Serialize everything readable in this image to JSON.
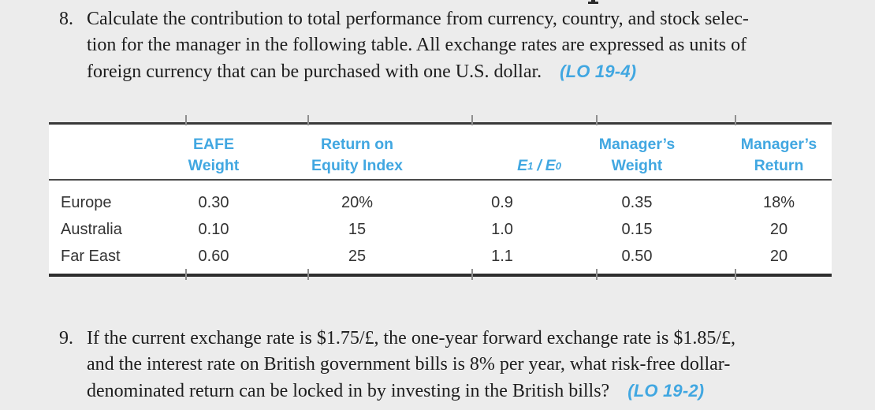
{
  "colors": {
    "accent_blue": "#41a7e1",
    "page_background": "#ececec",
    "table_background": "#ffffff"
  },
  "problem_8": {
    "number": "8.",
    "line1": "Calculate the contribution to total performance from currency, country, and stock selec-",
    "line2": "tion for the manager in the following table. All exchange rates are expressed as units of",
    "line3": "foreign currency that can be purchased with one U.S. dollar.",
    "learning_objective": "(LO 19-4)"
  },
  "performance_table": {
    "headers": {
      "eafe_weight": {
        "line1": "EAFE",
        "line2": "Weight"
      },
      "return_on_equity_index": {
        "line1": "Return on",
        "line2": "Equity Index"
      },
      "exchange_rate_ratio": {
        "e1": "E",
        "sub1": "1",
        "slash": "/",
        "e2": "E",
        "sub2": "0"
      },
      "managers_weight": {
        "line1": "Manager’s",
        "line2": "Weight"
      },
      "managers_return": {
        "line1": "Manager’s",
        "line2": "Return"
      }
    },
    "rows": [
      {
        "label": "Europe",
        "eafe_weight": "0.30",
        "return_on_equity_index": "20%",
        "e1_e0": "0.9",
        "managers_weight": "0.35",
        "managers_return": "18%"
      },
      {
        "label": "Australia",
        "eafe_weight": "0.10",
        "return_on_equity_index": "15",
        "e1_e0": "1.0",
        "managers_weight": "0.15",
        "managers_return": "20"
      },
      {
        "label": "Far East",
        "eafe_weight": "0.60",
        "return_on_equity_index": "25",
        "e1_e0": "1.1",
        "managers_weight": "0.50",
        "managers_return": "20"
      }
    ]
  },
  "problem_9": {
    "number": "9.",
    "line1": "If the current exchange rate is $1.75/£, the one-year forward exchange rate is $1.85/£,",
    "line2": "and the interest rate on British government bills is 8% per year, what risk-free dollar-",
    "line3": "denominated return can be locked in by investing in the British bills?",
    "learning_objective": "(LO 19-2)"
  }
}
